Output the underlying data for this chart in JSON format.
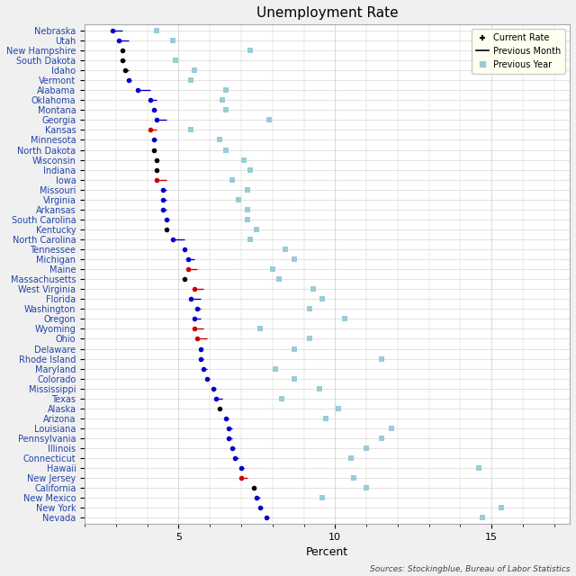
{
  "title": "Unemployment Rate",
  "xlabel": "Percent",
  "source": "Sources: Stockingblue, Bureau of Labor Statistics",
  "states": [
    "Nebraska",
    "Utah",
    "New Hampshire",
    "South Dakota",
    "Idaho",
    "Vermont",
    "Alabama",
    "Oklahoma",
    "Montana",
    "Georgia",
    "Kansas",
    "Minnesota",
    "North Dakota",
    "Wisconsin",
    "Indiana",
    "Iowa",
    "Missouri",
    "Virginia",
    "Arkansas",
    "South Carolina",
    "Kentucky",
    "North Carolina",
    "Tennessee",
    "Michigan",
    "Maine",
    "Massachusetts",
    "West Virginia",
    "Florida",
    "Washington",
    "Oregon",
    "Wyoming",
    "Ohio",
    "Delaware",
    "Rhode Island",
    "Maryland",
    "Colorado",
    "Mississippi",
    "Texas",
    "Alaska",
    "Arizona",
    "Louisiana",
    "Pennsylvania",
    "Illinois",
    "Connecticut",
    "Hawaii",
    "New Jersey",
    "California",
    "New Mexico",
    "New York",
    "Nevada"
  ],
  "current_rate": [
    2.9,
    3.1,
    3.2,
    3.2,
    3.3,
    3.4,
    3.7,
    4.1,
    4.2,
    4.3,
    4.1,
    4.2,
    4.2,
    4.3,
    4.3,
    4.3,
    4.5,
    4.5,
    4.5,
    4.6,
    4.6,
    4.8,
    5.2,
    5.3,
    5.3,
    5.2,
    5.5,
    5.4,
    5.6,
    5.5,
    5.5,
    5.6,
    5.7,
    5.7,
    5.8,
    5.9,
    6.1,
    6.2,
    6.3,
    6.5,
    6.6,
    6.6,
    6.7,
    6.8,
    7.0,
    7.0,
    7.4,
    7.5,
    7.6,
    7.8
  ],
  "prev_month_rate": [
    3.2,
    3.4,
    3.2,
    3.3,
    3.4,
    3.5,
    4.1,
    4.3,
    4.3,
    4.6,
    4.3,
    4.3,
    4.2,
    4.3,
    4.3,
    4.6,
    4.6,
    4.6,
    4.6,
    4.7,
    4.6,
    5.2,
    5.2,
    5.5,
    5.6,
    5.2,
    5.8,
    5.7,
    5.7,
    5.7,
    5.8,
    5.9,
    5.7,
    5.8,
    5.9,
    6.0,
    6.2,
    6.4,
    6.3,
    6.6,
    6.7,
    6.7,
    6.8,
    6.9,
    7.1,
    7.2,
    7.4,
    7.6,
    7.7,
    7.9
  ],
  "prev_year_rate": [
    4.3,
    4.8,
    7.3,
    4.9,
    5.5,
    5.4,
    6.5,
    6.4,
    6.5,
    7.9,
    5.4,
    6.3,
    6.5,
    7.1,
    7.3,
    6.7,
    7.2,
    6.9,
    7.2,
    7.2,
    7.5,
    7.3,
    8.4,
    8.7,
    8.0,
    8.2,
    9.3,
    9.6,
    9.2,
    10.3,
    7.6,
    9.2,
    8.7,
    11.5,
    8.1,
    8.7,
    9.5,
    8.3,
    10.1,
    9.7,
    11.8,
    11.5,
    11.0,
    10.5,
    14.6,
    10.6,
    11.0,
    9.6,
    15.3,
    14.7
  ],
  "dot_color": [
    "blue",
    "blue",
    "black",
    "black",
    "black",
    "blue",
    "blue",
    "blue",
    "blue",
    "blue",
    "red",
    "blue",
    "black",
    "black",
    "black",
    "red",
    "blue",
    "blue",
    "blue",
    "blue",
    "black",
    "blue",
    "blue",
    "blue",
    "red",
    "black",
    "red",
    "blue",
    "blue",
    "blue",
    "red",
    "red",
    "blue",
    "blue",
    "blue",
    "blue",
    "blue",
    "blue",
    "black",
    "blue",
    "blue",
    "blue",
    "blue",
    "blue",
    "blue",
    "red",
    "black",
    "blue",
    "blue",
    "blue"
  ],
  "xlim": [
    2.0,
    17.5
  ],
  "xticks": [
    5,
    10,
    15
  ],
  "fig_bg": "#f0f0f0",
  "plot_bg": "#ffffff",
  "grid_color": "#cccccc",
  "prev_year_color": "#99ccd4",
  "legend_bg": "#fffff0",
  "label_color": "#2244aa",
  "title_fontsize": 11,
  "tick_fontsize": 7,
  "xlabel_fontsize": 9
}
